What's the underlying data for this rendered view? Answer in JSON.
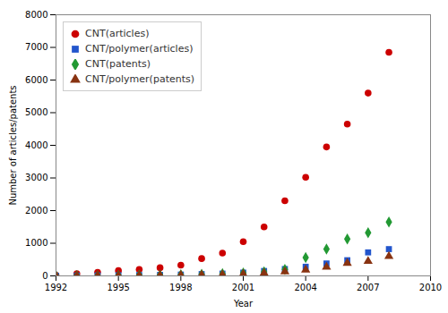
{
  "chart_data": {
    "type": "scatter",
    "x": [
      1992,
      1993,
      1994,
      1995,
      1996,
      1997,
      1998,
      1999,
      2000,
      2001,
      2002,
      2003,
      2004,
      2005,
      2006,
      2007,
      2008
    ],
    "series": [
      {
        "name": "CNT(articles)",
        "color": "#cc0000",
        "marker": "circle",
        "values": [
          20,
          70,
          110,
          160,
          200,
          250,
          330,
          530,
          700,
          1050,
          1500,
          2300,
          3020,
          3950,
          4650,
          5600,
          6850
        ]
      },
      {
        "name": "CNT/polymer(articles)",
        "color": "#2255cc",
        "marker": "square",
        "values": [
          5,
          10,
          15,
          20,
          25,
          30,
          40,
          55,
          70,
          100,
          150,
          210,
          280,
          380,
          480,
          720,
          820
        ]
      },
      {
        "name": "CNT(patents)",
        "color": "#229933",
        "marker": "diamond",
        "values": [
          3,
          6,
          9,
          12,
          18,
          25,
          35,
          50,
          65,
          90,
          125,
          200,
          560,
          820,
          1130,
          1320,
          1650
        ]
      },
      {
        "name": "CNT/polymer(patents)",
        "color": "#883311",
        "marker": "triangle",
        "values": [
          2,
          5,
          7,
          10,
          12,
          15,
          20,
          28,
          38,
          55,
          85,
          130,
          185,
          270,
          390,
          450,
          600
        ]
      }
    ],
    "xlabel": "Year",
    "ylabel": "Number of articles/patents",
    "xlim": [
      1992,
      2010
    ],
    "ylim": [
      0,
      8000
    ],
    "xticks": [
      1992,
      1995,
      1998,
      2001,
      2004,
      2007,
      2010
    ],
    "yticks": [
      0,
      1000,
      2000,
      3000,
      4000,
      5000,
      6000,
      7000,
      8000
    ],
    "legend": "upper left",
    "grid": false
  }
}
